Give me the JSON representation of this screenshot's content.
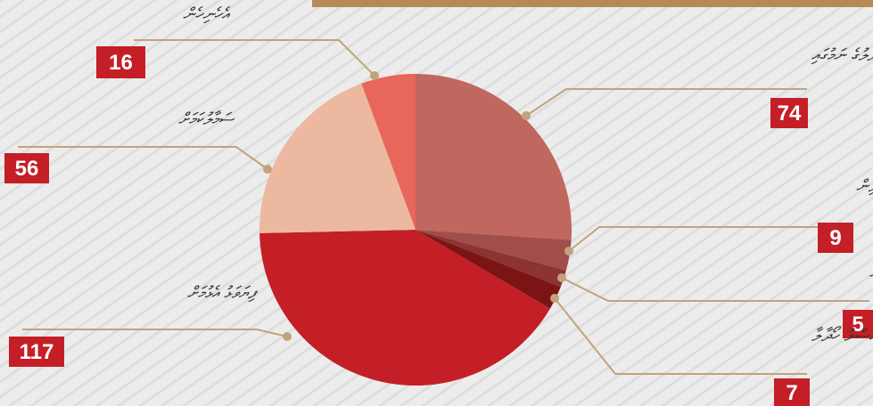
{
  "chart_data": {
    "type": "pie",
    "categories": [
      "ޕްރިސިޕަލް ބަދަލުގެ ނަމުގައި",
      "ޕޮލިސްގެ ހިފަހައްޓާ ކުދިން",
      "ހިމާޔަތް ދިނުމަށް ބެލުން",
      "އަސްލު ހޯދާލާ",
      "ފިޔަވަޅު އެޅުމަށް",
      "ސަމާލުކަމަށް",
      "އެހެނިހެން"
    ],
    "values": [
      74,
      9,
      5,
      7,
      117,
      56,
      16
    ],
    "colors": [
      "#c0675f",
      "#a14e4a",
      "#8c3333",
      "#7c1416",
      "#c41f26",
      "#edb8a0",
      "#e8665a"
    ]
  }
}
